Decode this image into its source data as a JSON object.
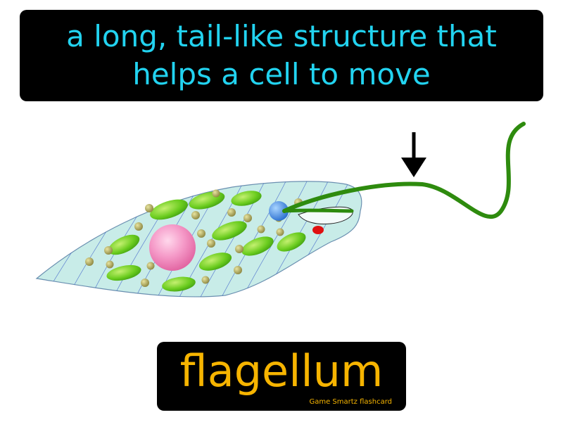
{
  "definition": {
    "line1": "a long, tail-like structure that",
    "line2": "helps a cell to move"
  },
  "term": "flagellum",
  "credit": "Game Smartz flashcard",
  "colors": {
    "definition_text": "#22d3f0",
    "term_text": "#f6b400",
    "box_background": "#000000",
    "flagellum": "#2e8b0e",
    "cell_body": "#c8ece8",
    "nucleus": "#f078b4",
    "chloroplast": "#5ec418",
    "granule": "#b8b060",
    "basal_body": "#3a8ae0",
    "eyespot": "#e01010",
    "arrow": "#000000"
  },
  "icons": [
    "down-arrow-icon"
  ]
}
